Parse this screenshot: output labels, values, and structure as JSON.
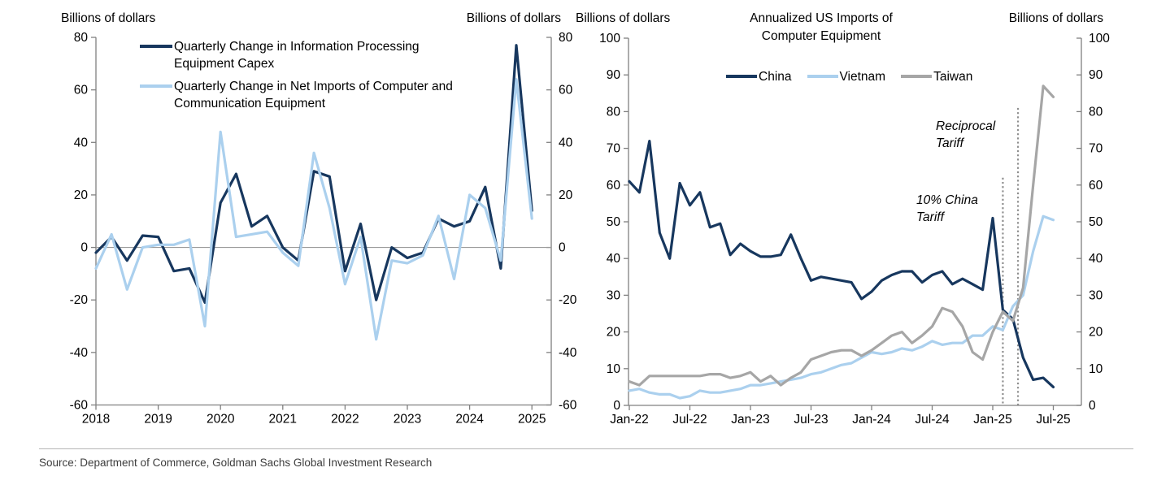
{
  "labels": {
    "billions": "Billions of dollars",
    "title_line1": "Annualized US Imports of",
    "title_line2": "Computer Equipment",
    "legend_left": [
      {
        "line1": "Quarterly Change in Information Processing",
        "line2": "Equipment Capex"
      },
      {
        "line1": "Quarterly Change in Net Imports of Computer and",
        "line2": "Communication Equipment"
      }
    ],
    "legend_right": [
      "China",
      "Vietnam",
      "Taiwan"
    ],
    "annotation_china": "10% China Tariff",
    "annotation_reciprocal": "Reciprocal Tariff",
    "source": "Source: Department of Commerce, Goldman Sachs Global Investment Research"
  },
  "colors": {
    "navy": "#17375E",
    "light_blue": "#ABD0EE",
    "gray": "#A6A6A6",
    "axis": "#808080",
    "zero_line": "#9B9B9B",
    "dotted_line": "#8F8F8F"
  },
  "chart_data": [
    {
      "type": "line",
      "title": "",
      "unit_left": "Billions of dollars",
      "unit_right": "Billions of dollars",
      "frequency": "quarterly",
      "x": [
        "2018Q1",
        "2018Q2",
        "2018Q3",
        "2018Q4",
        "2019Q1",
        "2019Q2",
        "2019Q3",
        "2019Q4",
        "2020Q1",
        "2020Q2",
        "2020Q3",
        "2020Q4",
        "2021Q1",
        "2021Q2",
        "2021Q3",
        "2021Q4",
        "2022Q1",
        "2022Q2",
        "2022Q3",
        "2022Q4",
        "2023Q1",
        "2023Q2",
        "2023Q3",
        "2023Q4",
        "2024Q1",
        "2024Q2",
        "2024Q3",
        "2024Q4",
        "2025Q1"
      ],
      "x_tick_labels": [
        "2018",
        "2019",
        "2020",
        "2021",
        "2022",
        "2023",
        "2024",
        "2025"
      ],
      "ylim": [
        -60,
        80
      ],
      "yticks": [
        -60,
        -40,
        -20,
        0,
        20,
        40,
        60,
        80
      ],
      "zero_line": true,
      "grid": false,
      "legend_position": "top-left",
      "series": [
        {
          "name": "Quarterly Change in Information Processing Equipment Capex",
          "color": "#17375E",
          "values": [
            -2,
            4,
            -5,
            4.5,
            4,
            -9,
            -8,
            -21,
            17,
            28,
            8,
            12,
            0,
            -5,
            29,
            27,
            -9,
            9,
            -20,
            0,
            -4,
            -2,
            11,
            8,
            10,
            23,
            -8,
            77,
            14
          ]
        },
        {
          "name": "Quarterly Change in Net Imports of Computer and Communication Equipment",
          "color": "#ABD0EE",
          "values": [
            -8,
            5,
            -16,
            0,
            1,
            1,
            3,
            -30,
            44,
            4,
            5,
            6,
            -2,
            -7,
            36,
            15,
            -14,
            4,
            -35,
            -5,
            -6,
            -3,
            12,
            -12,
            20,
            15,
            -5,
            64,
            11
          ]
        }
      ]
    },
    {
      "type": "line",
      "title": "Annualized US Imports of Computer Equipment",
      "unit_left": "Billions of dollars",
      "unit_right": "Billions of dollars",
      "frequency": "monthly",
      "x": [
        "Jan-22",
        "Feb-22",
        "Mar-22",
        "Apr-22",
        "May-22",
        "Jun-22",
        "Jul-22",
        "Aug-22",
        "Sep-22",
        "Oct-22",
        "Nov-22",
        "Dec-22",
        "Jan-23",
        "Feb-23",
        "Mar-23",
        "Apr-23",
        "May-23",
        "Jun-23",
        "Jul-23",
        "Aug-23",
        "Sep-23",
        "Oct-23",
        "Nov-23",
        "Dec-23",
        "Jan-24",
        "Feb-24",
        "Mar-24",
        "Apr-24",
        "May-24",
        "Jun-24",
        "Jul-24",
        "Aug-24",
        "Sep-24",
        "Oct-24",
        "Nov-24",
        "Dec-24",
        "Jan-25",
        "Feb-25",
        "Mar-25",
        "Apr-25",
        "May-25",
        "Jun-25",
        "Jul-25"
      ],
      "x_tick_labels": [
        "Jan-22",
        "Jul-22",
        "Jan-23",
        "Jul-23",
        "Jan-24",
        "Jul-24",
        "Jan-25",
        "Jul-25"
      ],
      "ylim": [
        0,
        100
      ],
      "yticks": [
        0,
        10,
        20,
        30,
        40,
        50,
        60,
        70,
        80,
        90,
        100
      ],
      "zero_line": false,
      "grid": false,
      "legend_position": "top-center",
      "series": [
        {
          "name": "China",
          "color": "#17375E",
          "values": [
            61,
            58,
            72,
            47,
            40,
            60.5,
            54.5,
            58,
            48.5,
            49.5,
            41,
            44,
            42,
            40.5,
            40.5,
            41,
            46.5,
            40,
            34,
            35,
            34.5,
            34,
            33.5,
            29,
            31,
            34,
            35.5,
            36.5,
            36.5,
            33.5,
            35.5,
            36.5,
            33,
            34.5,
            33,
            31.5,
            51,
            26,
            23.5,
            13,
            7,
            7.5,
            5
          ]
        },
        {
          "name": "Vietnam",
          "color": "#ABD0EE",
          "values": [
            4,
            4.5,
            3.5,
            3,
            3,
            2,
            2.5,
            4,
            3.5,
            3.5,
            4,
            4.5,
            5.5,
            5.5,
            6,
            6.5,
            7,
            7.5,
            8.5,
            9,
            10,
            11,
            11.5,
            13,
            14.5,
            14,
            14.5,
            15.5,
            15,
            16,
            17.5,
            16.5,
            17,
            17,
            19,
            19,
            21.5,
            20.5,
            27,
            30,
            42,
            51.5,
            50.5
          ]
        },
        {
          "name": "Taiwan",
          "color": "#A6A6A6",
          "values": [
            6.5,
            5.5,
            8,
            8,
            8,
            8,
            8,
            8,
            8.5,
            8.5,
            7.5,
            8,
            9,
            6.5,
            8,
            5.5,
            7.5,
            9,
            12.5,
            13.5,
            14.5,
            15,
            15,
            13.5,
            15,
            17,
            19,
            20,
            17,
            19,
            21.5,
            26.5,
            25.5,
            21.5,
            14.5,
            12.5,
            20,
            25.5,
            23,
            32,
            60,
            87,
            84
          ]
        }
      ],
      "annotations": [
        {
          "label": "10% China Tariff",
          "month": "Feb-25",
          "month_index": 37,
          "top_value": 62
        },
        {
          "label": "Reciprocal Tariff",
          "month": "Apr-25",
          "month_index": 38.5,
          "top_value": 81
        }
      ]
    }
  ]
}
